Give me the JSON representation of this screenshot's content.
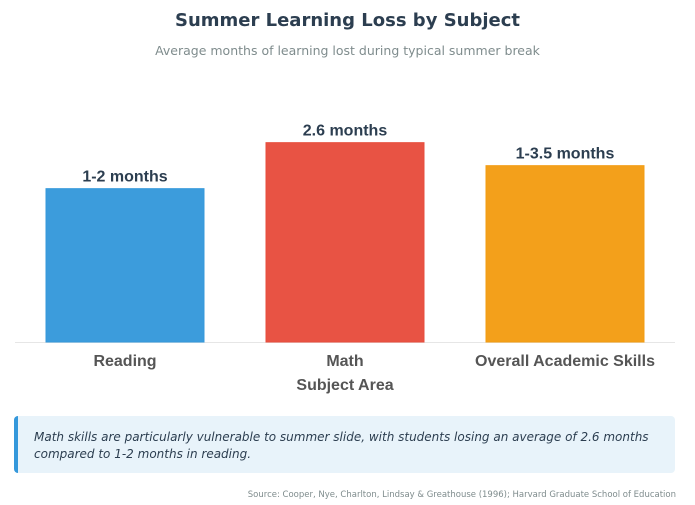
{
  "chart_data": {
    "type": "bar",
    "title": "Summer Learning Loss by Subject",
    "subtitle": "Average months of learning lost during typical summer break",
    "xlabel": "Subject Area",
    "ylabel": "",
    "categories": [
      "Reading",
      "Math",
      "Overall Academic Skills"
    ],
    "values": [
      2,
      2.6,
      2.3
    ],
    "data_labels": [
      "1-2 months",
      "2.6 months",
      "1-3.5 months"
    ],
    "colors": [
      "#3498db",
      "#e74c3c",
      "#f39c12"
    ],
    "ylim": [
      0,
      3
    ],
    "grid": false,
    "legend": "none"
  },
  "callout": {
    "text": "Math skills are particularly vulnerable to summer slide, with students losing an average of 2.6 months compared to 1-2 months in reading."
  },
  "source": "Source: Cooper, Nye, Charlton, Lindsay & Greathouse (1996); Harvard Graduate School of Education"
}
